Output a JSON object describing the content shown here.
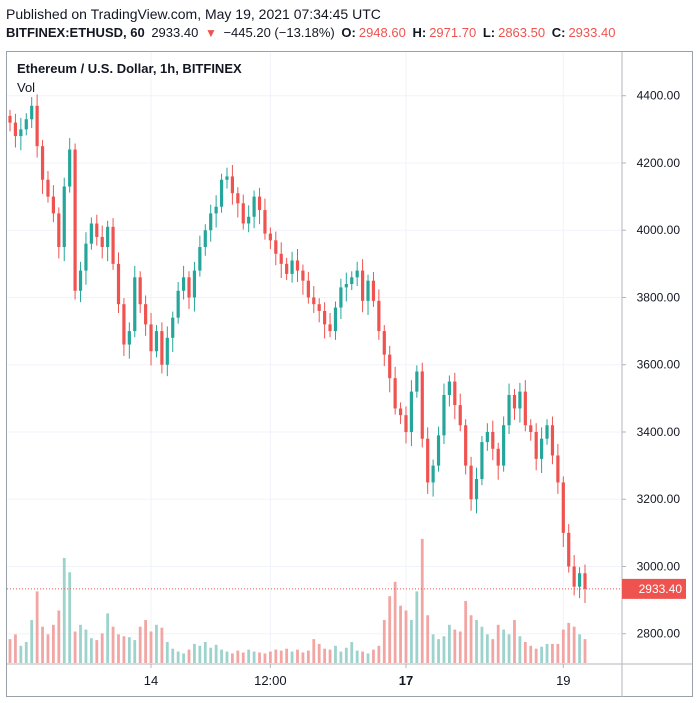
{
  "published": "Published on TradingView.com, May 19, 2021 07:34:45 UTC",
  "ticker": {
    "symbol": "BITFINEX:ETHUSD, 60",
    "last": "2933.40",
    "change": "−445.20 (−13.18%)",
    "o_label": "O:",
    "o_value": "2948.60",
    "h_label": "H:",
    "h_value": "2971.70",
    "l_label": "L:",
    "l_value": "2863.50",
    "c_label": "C:",
    "c_value": "2933.40",
    "arrow_icon": "down-triangle-icon"
  },
  "legend": {
    "title": "Ethereum / U.S. Dollar, 1h, BITFINEX",
    "volume": "Vol"
  },
  "chart_data": {
    "type": "candlestick",
    "x_tick_labels": [
      "14",
      "12:00",
      "17",
      "19"
    ],
    "y_tick_labels": [
      "2800.00",
      "3000.00",
      "3200.00",
      "3400.00",
      "3600.00",
      "3800.00",
      "4000.00",
      "4200.00",
      "4400.00"
    ],
    "y_ticks": [
      2800,
      3000,
      3200,
      3400,
      3600,
      3800,
      4000,
      4200,
      4400
    ],
    "ylim": [
      2710,
      4530
    ],
    "last_price": 2933.4,
    "last_price_label": "2933.40",
    "colors": {
      "up": "#26a69a",
      "down": "#ef5350",
      "vol_up": "#9ed3cd",
      "vol_down": "#f2a6a4",
      "grid": "#f0f3fa"
    },
    "closes": [
      4320,
      4280,
      4300,
      4330,
      4370,
      4250,
      4150,
      4100,
      4050,
      3950,
      4130,
      4240,
      3820,
      3880,
      3960,
      4020,
      3980,
      3950,
      4010,
      3900,
      3780,
      3660,
      3700,
      3860,
      3780,
      3720,
      3640,
      3700,
      3600,
      3680,
      3740,
      3820,
      3860,
      3800,
      3880,
      3950,
      4000,
      4050,
      4070,
      4150,
      4160,
      4110,
      4080,
      4020,
      4040,
      4100,
      4060,
      3990,
      3970,
      3930,
      3900,
      3870,
      3910,
      3880,
      3850,
      3800,
      3780,
      3760,
      3720,
      3700,
      3770,
      3830,
      3840,
      3860,
      3880,
      3790,
      3850,
      3790,
      3700,
      3630,
      3560,
      3470,
      3450,
      3400,
      3520,
      3580,
      3380,
      3250,
      3300,
      3390,
      3510,
      3550,
      3480,
      3420,
      3300,
      3200,
      3260,
      3370,
      3400,
      3350,
      3300,
      3420,
      3510,
      3470,
      3520,
      3420,
      3400,
      3320,
      3380,
      3420,
      3330,
      3250,
      3100,
      3000,
      2940,
      2980,
      2933.4
    ],
    "volumes": [
      25,
      30,
      18,
      22,
      45,
      75,
      38,
      30,
      40,
      55,
      110,
      95,
      33,
      40,
      35,
      26,
      24,
      31,
      52,
      38,
      30,
      28,
      27,
      24,
      38,
      45,
      33,
      40,
      37,
      22,
      15,
      12,
      10,
      14,
      20,
      18,
      22,
      16,
      19,
      14,
      12,
      10,
      13,
      11,
      14,
      12,
      11,
      10,
      12,
      14,
      13,
      15,
      12,
      14,
      11,
      13,
      25,
      20,
      15,
      14,
      18,
      12,
      16,
      22,
      13,
      12,
      10,
      14,
      18,
      45,
      70,
      85,
      60,
      55,
      45,
      75,
      130,
      50,
      30,
      25,
      28,
      40,
      35,
      33,
      65,
      50,
      45,
      38,
      30,
      25,
      40,
      35,
      30,
      45,
      28,
      22,
      18,
      15,
      17,
      20,
      20,
      20,
      35,
      42,
      38,
      30,
      25
    ],
    "volume_scale_max": 155
  }
}
